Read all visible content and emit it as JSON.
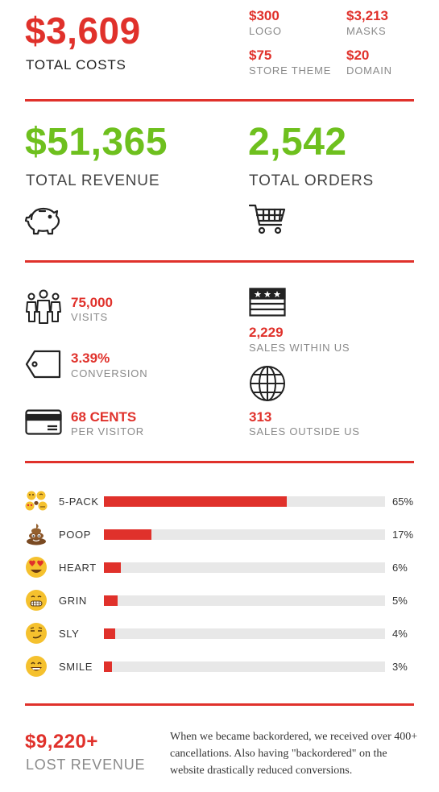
{
  "costs": {
    "total_value": "$3,609",
    "total_label": "TOTAL COSTS",
    "items": [
      {
        "value": "$300",
        "label": "LOGO"
      },
      {
        "value": "$3,213",
        "label": "MASKS"
      },
      {
        "value": "$75",
        "label": "STORE THEME"
      },
      {
        "value": "$20",
        "label": "DOMAIN"
      }
    ]
  },
  "revenue": {
    "value": "$51,365",
    "label": "TOTAL REVENUE",
    "icon": "piggy-bank-icon"
  },
  "orders": {
    "value": "2,542",
    "label": "TOTAL ORDERS",
    "icon": "shopping-cart-icon"
  },
  "stats": {
    "visits": {
      "value": "75,000",
      "label": "VISITS",
      "icon": "people-icon"
    },
    "conversion": {
      "value": "3.39%",
      "label": "CONVERSION",
      "icon": "price-tag-icon"
    },
    "per_visitor": {
      "value": "68 CENTS",
      "label": "PER VISITOR",
      "icon": "credit-card-icon"
    },
    "within_us": {
      "value": "2,229",
      "label": "SALES WITHIN US",
      "icon": "us-flag-icon"
    },
    "outside_us": {
      "value": "313",
      "label": "SALES OUTSIDE US",
      "icon": "globe-icon"
    }
  },
  "chart_data": {
    "type": "bar",
    "orientation": "horizontal",
    "categories": [
      "5-PACK",
      "POOP",
      "HEART",
      "GRIN",
      "SLY",
      "SMILE"
    ],
    "values": [
      65,
      17,
      6,
      5,
      4,
      3
    ],
    "value_labels": [
      "65%",
      "17%",
      "6%",
      "5%",
      "4%",
      "3%"
    ],
    "category_icons": [
      "five-pack-emoji-icon",
      "poop-emoji-icon",
      "heart-eyes-emoji-icon",
      "grin-emoji-icon",
      "sly-emoji-icon",
      "smile-emoji-icon"
    ],
    "xlim": [
      0,
      100
    ],
    "bar_color": "#e0312b",
    "track_color": "#e8e8e8"
  },
  "lost": {
    "value": "$9,220+",
    "label": "LOST REVENUE",
    "note": "When we became backordered, we received over 400+ cancellations. Also having \"backordered\" on the website drastically reduced conversions."
  },
  "colors": {
    "accent_red": "#e0312b",
    "accent_green": "#6ec01e",
    "label_gray": "#8a8a8a",
    "track_gray": "#e8e8e8"
  }
}
